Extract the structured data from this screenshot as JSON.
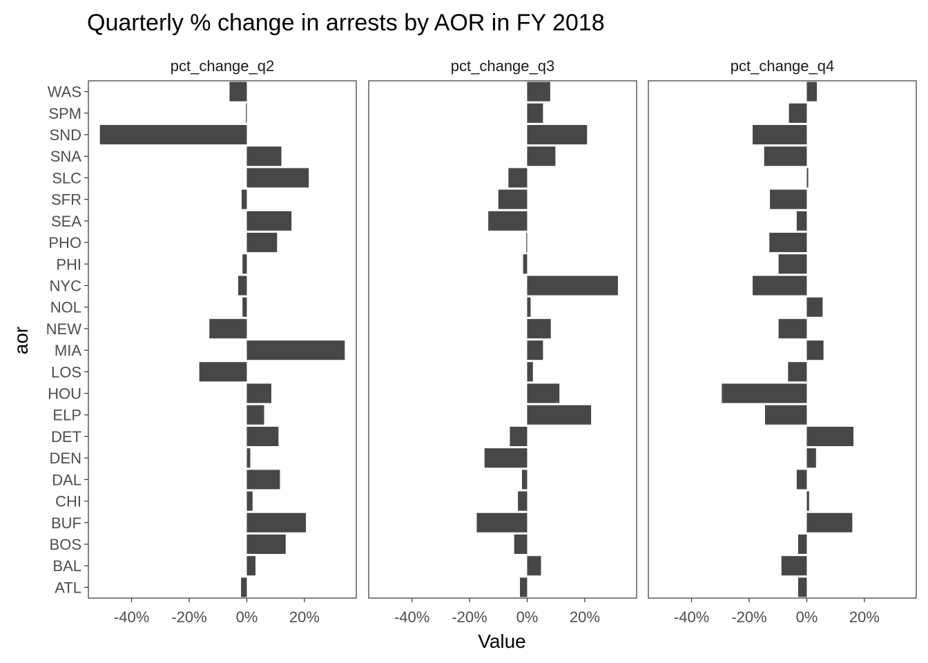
{
  "chart_data": {
    "type": "bar",
    "orientation": "horizontal",
    "title": "Quarterly % change in arrests by AOR in FY 2018",
    "xlabel": "Value",
    "ylabel": "aor",
    "xlim": [
      -0.55,
      0.38
    ],
    "x_ticks": [
      -0.4,
      -0.2,
      0,
      0.2
    ],
    "x_tick_labels": [
      "-40%",
      "-20%",
      "0%",
      "20%"
    ],
    "grid": false,
    "bar_color": "#474747",
    "categories": [
      "ATL",
      "BAL",
      "BOS",
      "BUF",
      "CHI",
      "DAL",
      "DEN",
      "DET",
      "ELP",
      "HOU",
      "LOS",
      "MIA",
      "NEW",
      "NOL",
      "NYC",
      "PHI",
      "PHO",
      "SEA",
      "SFR",
      "SLC",
      "SNA",
      "SND",
      "SPM",
      "WAS"
    ],
    "series": [
      {
        "name": "pct_change_q2",
        "values": [
          -0.02,
          0.03,
          0.135,
          0.205,
          0.02,
          0.115,
          0.012,
          0.11,
          0.06,
          0.085,
          -0.165,
          0.34,
          -0.13,
          -0.015,
          -0.03,
          -0.015,
          0.105,
          0.155,
          -0.018,
          0.215,
          0.12,
          -0.51,
          -0.003,
          -0.06
        ]
      },
      {
        "name": "pct_change_q3",
        "values": [
          -0.025,
          0.048,
          -0.045,
          -0.175,
          -0.032,
          -0.018,
          -0.148,
          -0.06,
          0.222,
          0.112,
          0.02,
          0.055,
          0.082,
          0.012,
          0.315,
          -0.014,
          -0.003,
          -0.135,
          -0.1,
          -0.065,
          0.098,
          0.208,
          0.055,
          0.08
        ]
      },
      {
        "name": "pct_change_q4",
        "values": [
          -0.03,
          -0.088,
          -0.03,
          0.158,
          0.008,
          -0.035,
          0.032,
          0.162,
          -0.145,
          -0.295,
          -0.065,
          0.058,
          -0.098,
          0.055,
          -0.188,
          -0.098,
          -0.13,
          -0.035,
          -0.128,
          0.005,
          -0.148,
          -0.188,
          -0.062,
          0.035
        ]
      }
    ]
  }
}
